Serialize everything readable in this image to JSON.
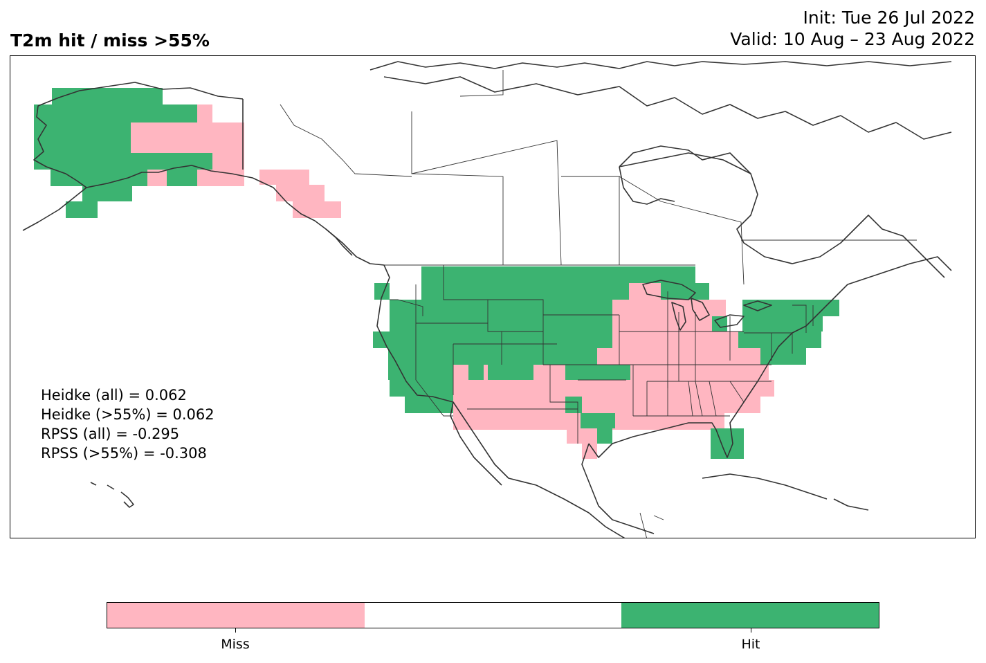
{
  "title": "T2m hit / miss  >55%",
  "init_line": "Init: Tue 26 Jul 2022",
  "valid_line": "Valid: 10 Aug – 23 Aug 2022",
  "scores": [
    "Heidke (all) = 0.062",
    "Heidke (>55%) = 0.062",
    "RPSS (all) = -0.295",
    "RPSS (>55%) = -0.308"
  ],
  "colors": {
    "miss": "#ffb6c1",
    "neutral": "#ffffff",
    "hit": "#3cb371",
    "outline": "#333333"
  },
  "legend": {
    "labels": [
      "Miss",
      "Hit"
    ],
    "segments": [
      "miss",
      "neutral",
      "hit"
    ]
  }
}
